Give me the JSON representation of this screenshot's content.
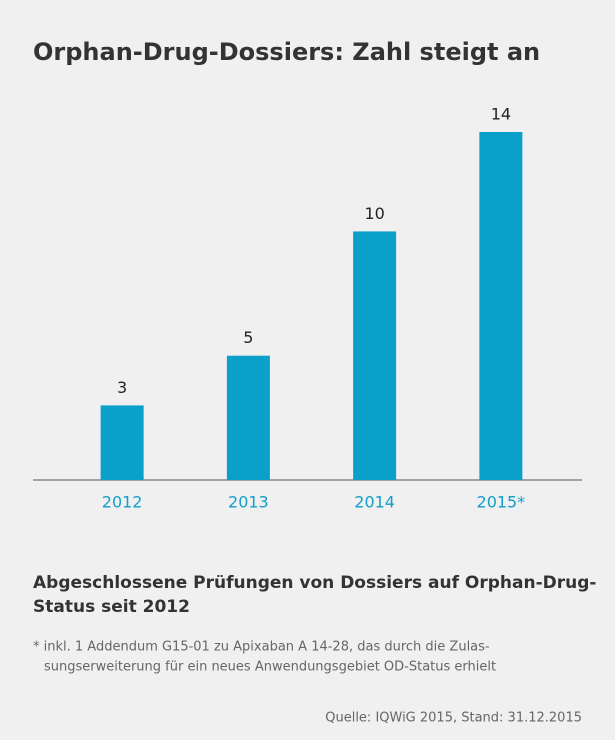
{
  "chart_data": {
    "type": "bar",
    "title": "Orphan-Drug-Dossiers: Zahl steigt an",
    "categories": [
      "2012",
      "2013",
      "2014",
      "2015*"
    ],
    "values": [
      3,
      5,
      10,
      14
    ],
    "color": "#0ba0c9",
    "subtitle": [
      "Abgeschlossene Prüfungen von Dossiers auf Orphan-Drug-",
      "Status seit 2012"
    ],
    "footnote": [
      "* inkl. 1 Addendum G15-01 zu Apixaban A 14-28, das durch die Zulas-",
      "sungserweiterung für ein neues Anwendungsgebiet OD-Status erhielt"
    ],
    "source": "Quelle: IQWiG 2015, Stand: 31.12.2015"
  }
}
